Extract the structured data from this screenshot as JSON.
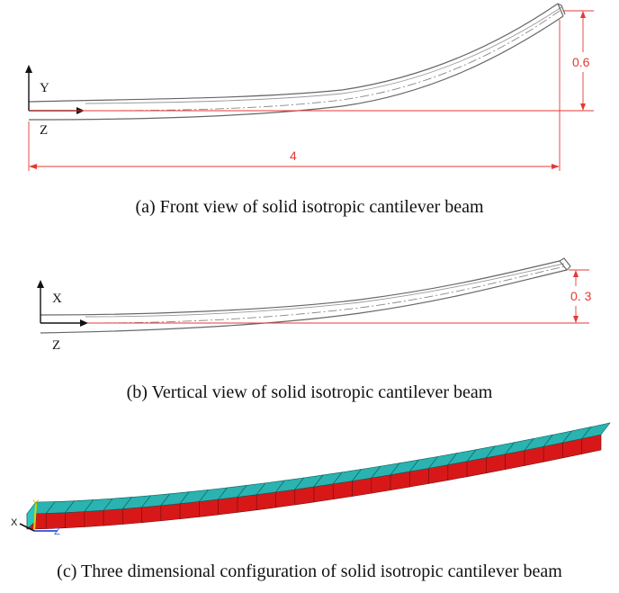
{
  "panel_a": {
    "axis_y": "Y",
    "axis_z": "Z",
    "dim_height": "0.6",
    "dim_length": "4",
    "caption": "(a) Front view of solid isotropic cantilever beam"
  },
  "panel_b": {
    "axis_x": "X",
    "axis_z": "Z",
    "dim_height": "0. 3",
    "caption": "(b) Vertical view of solid isotropic cantilever beam"
  },
  "panel_c": {
    "triad_x": "X",
    "triad_y": "Y",
    "triad_z": "Z",
    "caption": "(c) Three dimensional configuration of solid isotropic cantilever beam",
    "element_count": 30
  },
  "colors": {
    "outline": "#555555",
    "dimension": "#e53935",
    "beam_top": "#2ab3b0",
    "beam_side": "#d81818"
  }
}
